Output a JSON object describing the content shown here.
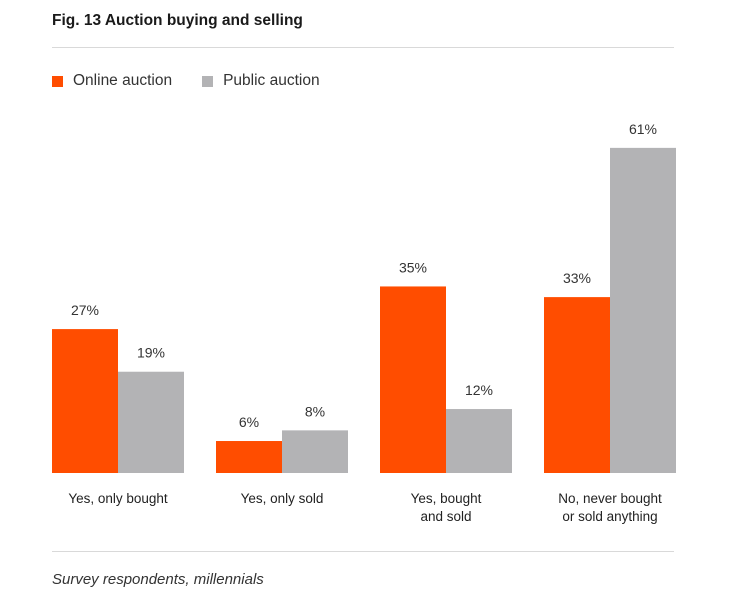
{
  "title": "Fig. 13 Auction buying and selling",
  "footnote": "Survey respondents, millennials",
  "colors": {
    "online": "#ff4d00",
    "public": "#b3b3b5",
    "rule": "#d9d9d9"
  },
  "chart_data": {
    "type": "bar",
    "title": "Fig. 13 Auction buying and selling",
    "categories": [
      [
        "Yes, only bought"
      ],
      [
        "Yes, only sold"
      ],
      [
        "Yes, bought",
        "and sold"
      ],
      [
        "No, never bought",
        "or sold anything"
      ]
    ],
    "series": [
      {
        "name": "Online auction",
        "values": [
          27,
          6,
          35,
          33
        ],
        "labels": [
          "27%",
          "6%",
          "35%",
          "33%"
        ]
      },
      {
        "name": "Public auction",
        "values": [
          19,
          8,
          12,
          61
        ],
        "labels": [
          "19%",
          "8%",
          "12%",
          "61%"
        ]
      }
    ],
    "ylim": [
      0,
      61
    ],
    "legend_position": "top-left",
    "grid": false
  }
}
